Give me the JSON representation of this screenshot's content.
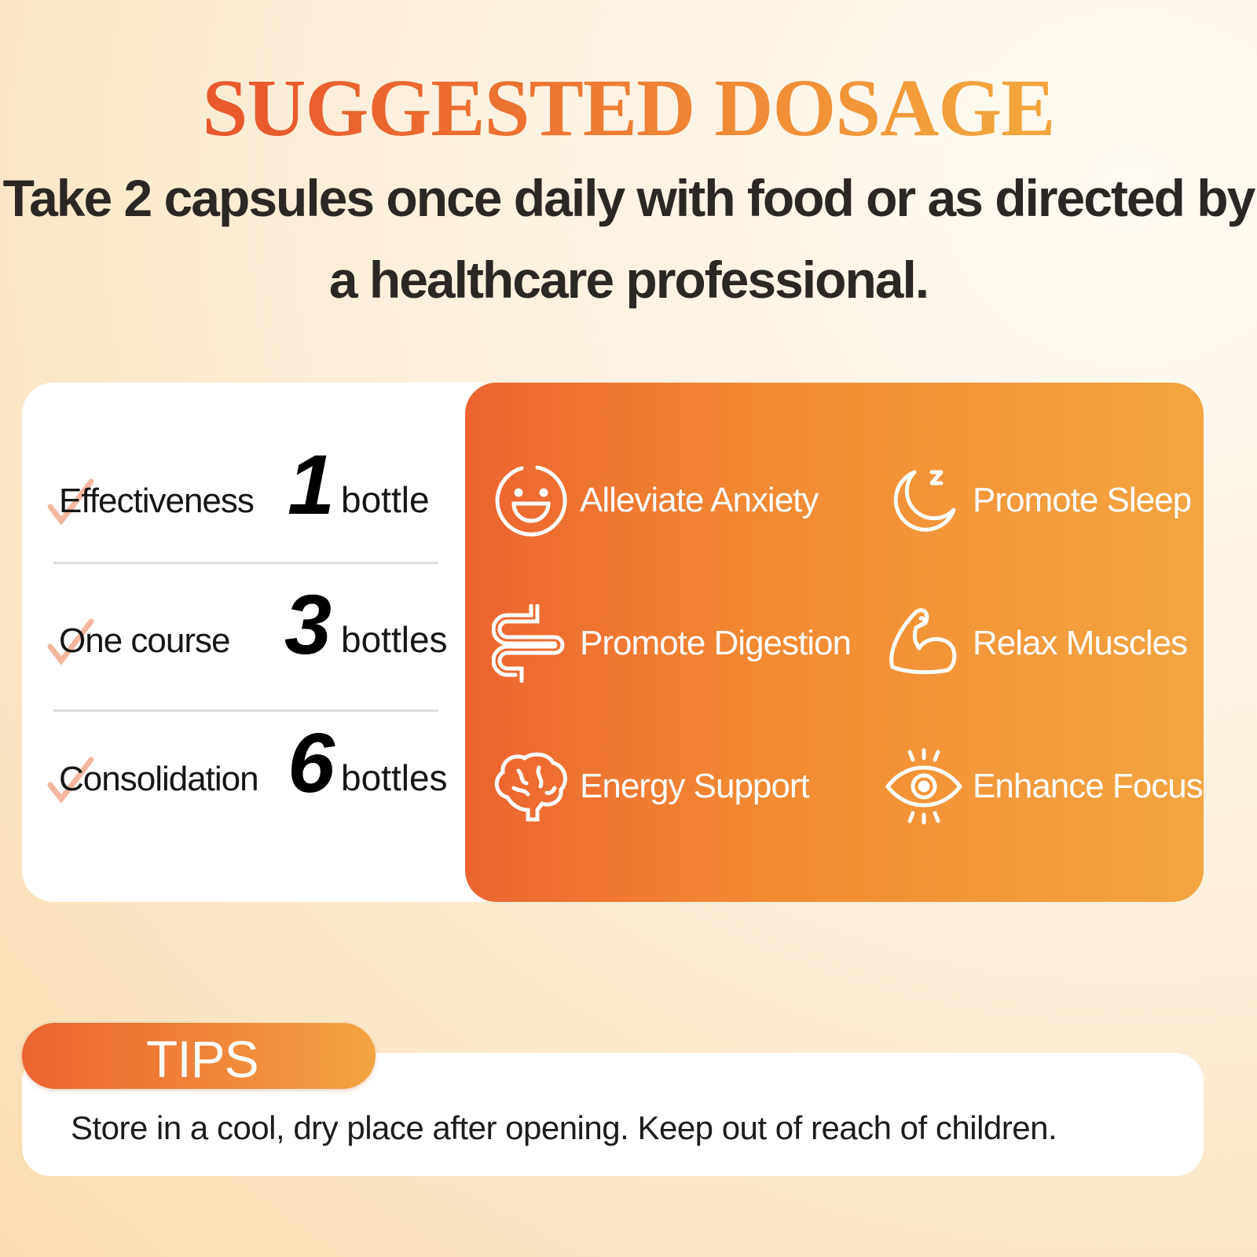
{
  "header": {
    "title": "SUGGESTED DOSAGE",
    "instruction": "Take 2 capsules once daily with food or as directed by a healthcare professional."
  },
  "dosage": [
    {
      "label": "Effectiveness",
      "number": "1",
      "unit": "bottle"
    },
    {
      "label": "One course",
      "number": "3",
      "unit": "bottles"
    },
    {
      "label": "Consolidation",
      "number": "6",
      "unit": "bottles"
    }
  ],
  "benefits": [
    {
      "label": "Alleviate Anxiety",
      "icon": "smiley-face-icon"
    },
    {
      "label": "Promote Sleep",
      "icon": "moon-sleep-icon"
    },
    {
      "label": "Promote Digestion",
      "icon": "intestine-icon"
    },
    {
      "label": "Relax Muscles",
      "icon": "flexed-arm-icon"
    },
    {
      "label": "Energy Support",
      "icon": "brain-icon"
    },
    {
      "label": "Enhance Focus",
      "icon": "eye-icon"
    }
  ],
  "tips": {
    "label": "TIPS",
    "text": "Store in a cool, dry place after opening. Keep out of reach of children."
  },
  "colors": {
    "accent_start": "#ec6330",
    "accent_end": "#f3a542",
    "text": "#2b2724"
  }
}
